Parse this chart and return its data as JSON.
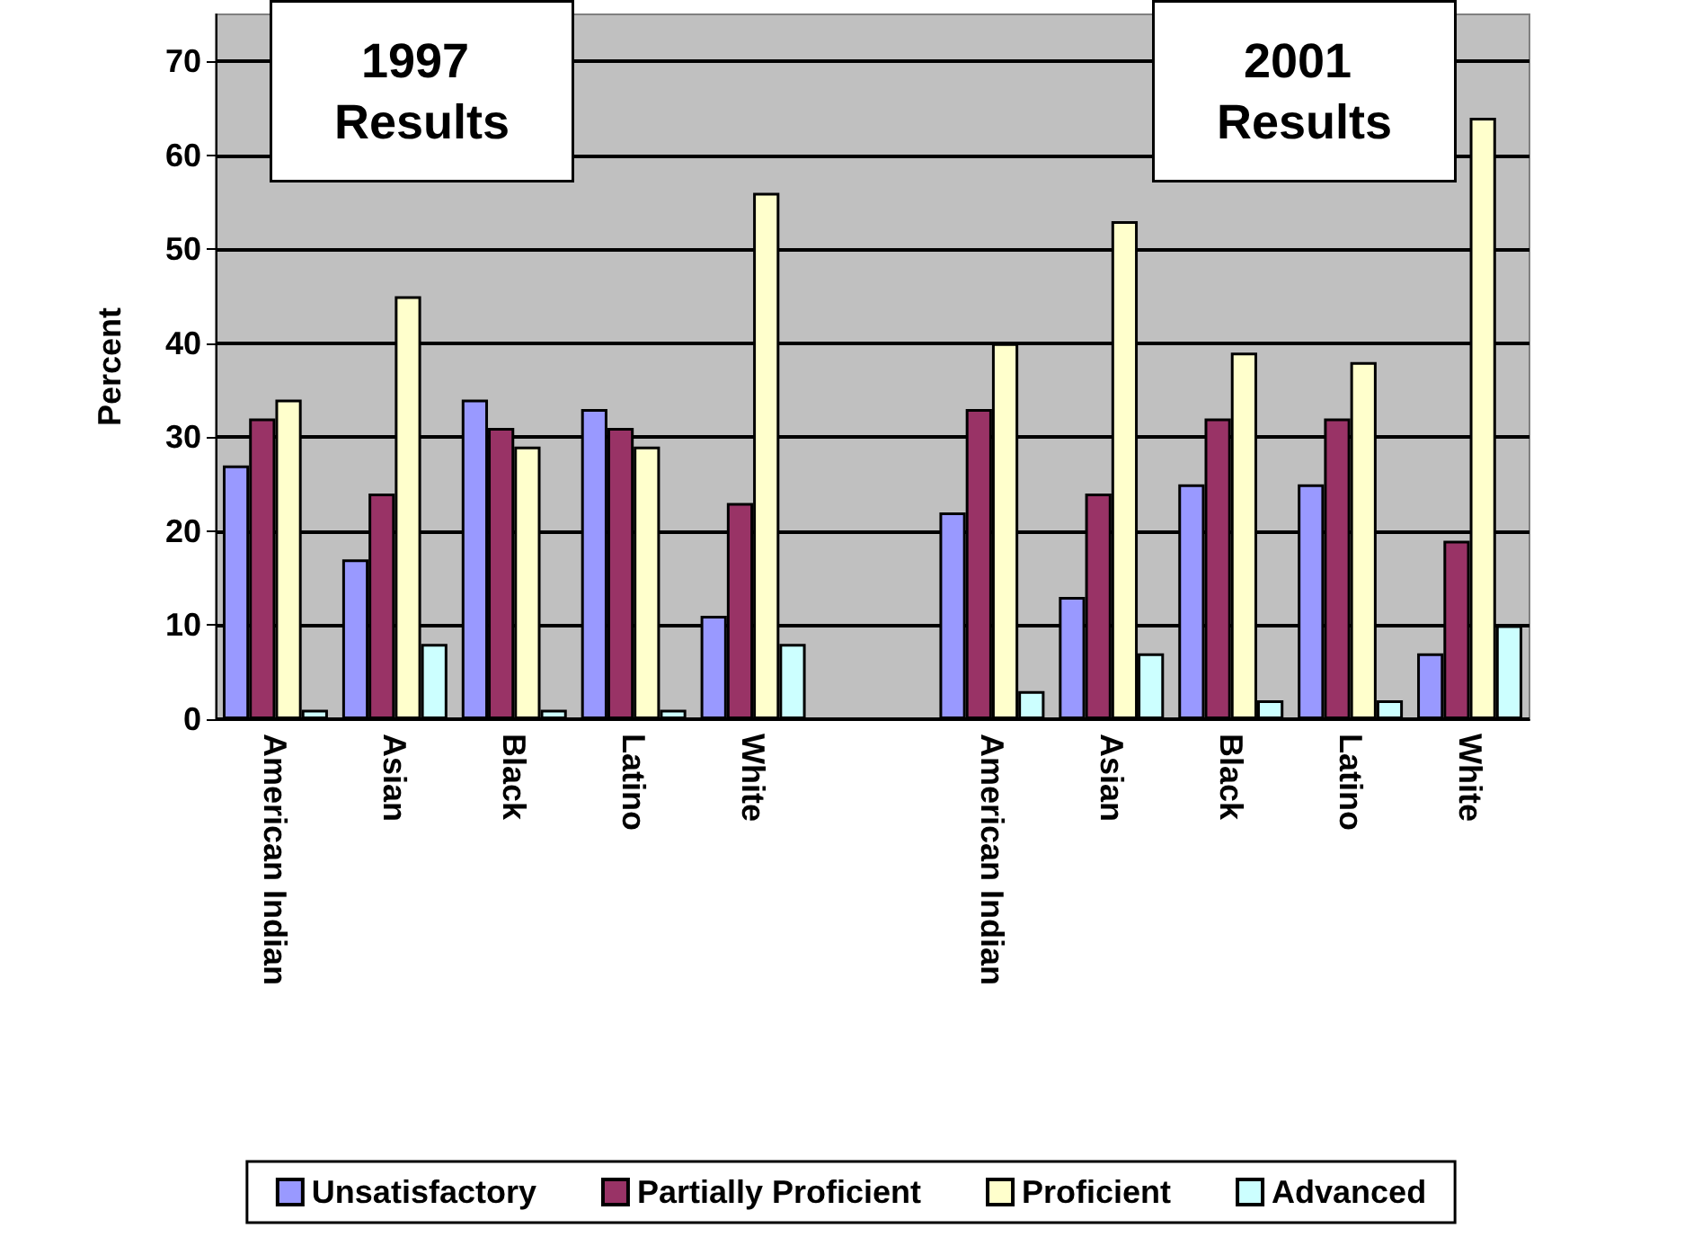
{
  "chart_data": {
    "type": "bar",
    "ylabel": "Percent",
    "categories": [
      "American Indian",
      "Asian",
      "Black",
      "Latino",
      "White",
      null,
      "American Indian",
      "Asian",
      "Black",
      "Latino",
      "White"
    ],
    "series": [
      {
        "name": "Unsatisfactory",
        "color": "#9999ff",
        "values": [
          27,
          17,
          34,
          33,
          11,
          null,
          22,
          13,
          25,
          25,
          7
        ]
      },
      {
        "name": "Partially Proficient",
        "color": "#993366",
        "values": [
          32,
          24,
          31,
          31,
          23,
          null,
          33,
          24,
          32,
          32,
          19
        ]
      },
      {
        "name": "Proficient",
        "color": "#ffffcc",
        "values": [
          34,
          45,
          29,
          29,
          56,
          null,
          40,
          53,
          39,
          38,
          64
        ]
      },
      {
        "name": "Advanced",
        "color": "#ccffff",
        "values": [
          1,
          8,
          1,
          1,
          8,
          null,
          3,
          7,
          2,
          2,
          10
        ]
      }
    ],
    "annotations": [
      "1997 Results",
      "2001 Results"
    ],
    "ylim": [
      0,
      75
    ],
    "yticks": [
      0,
      10,
      20,
      30,
      40,
      50,
      60,
      70
    ],
    "grid": "y",
    "legend": "bottom"
  }
}
